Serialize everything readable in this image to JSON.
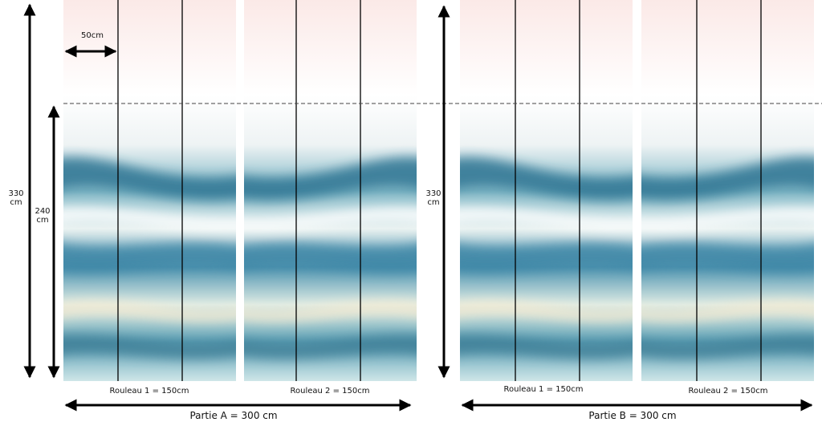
{
  "strip_width_label": "50cm",
  "visible_height_label": [
    "240",
    "cm"
  ],
  "parts": [
    {
      "height_label": [
        "330",
        "cm"
      ],
      "label": "Partie A = 300 cm",
      "rolls": [
        {
          "label": "Rouleau 1 = 150cm"
        },
        {
          "label": "Rouleau 2 = 150cm"
        }
      ]
    },
    {
      "height_label": [
        "330",
        "cm"
      ],
      "label": "Partie B = 300 cm",
      "rolls": [
        {
          "label": "Rouleau 1 = 150cm"
        },
        {
          "label": "Rouleau 2 = 150cm"
        }
      ]
    }
  ]
}
